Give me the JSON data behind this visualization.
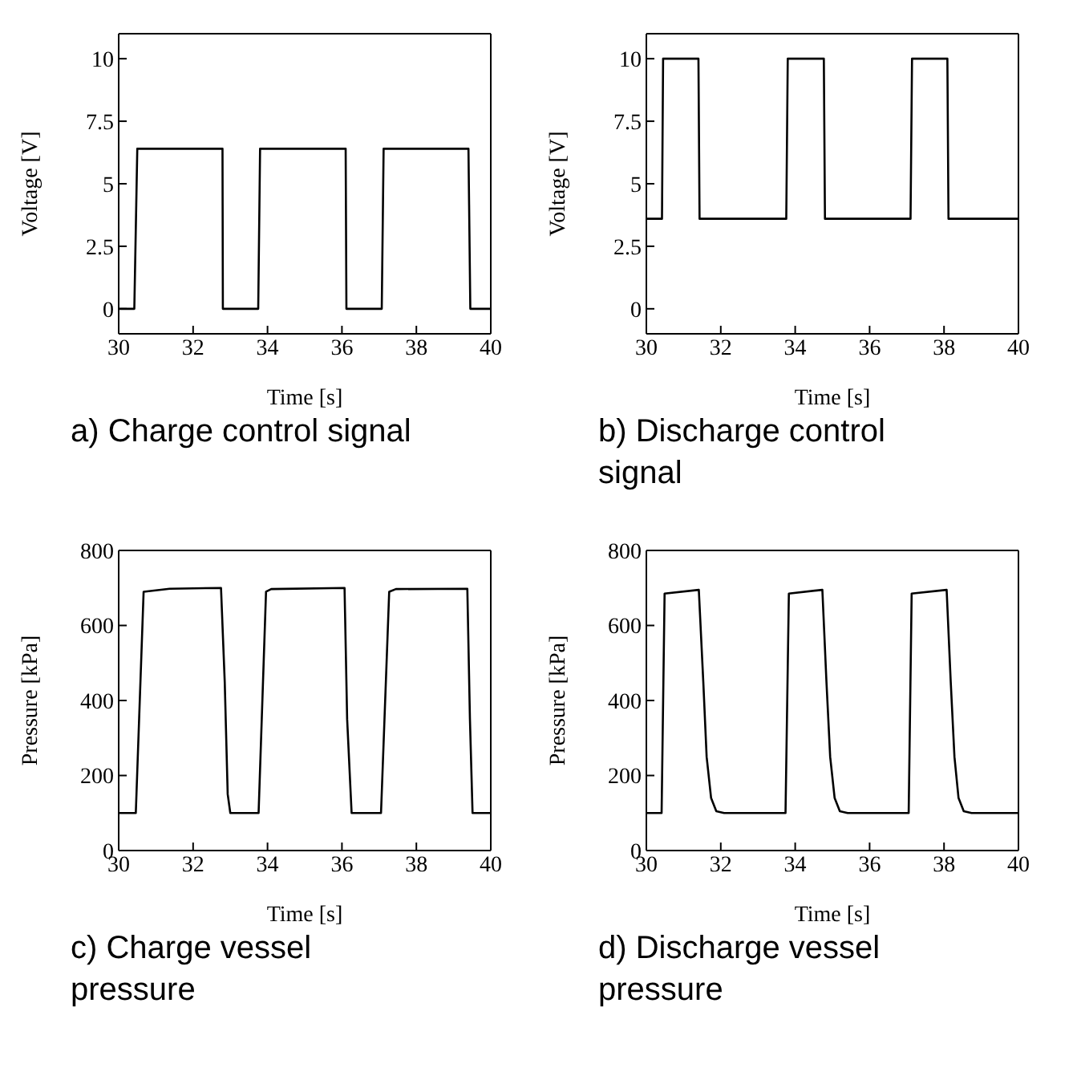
{
  "chart_data": [
    {
      "type": "line",
      "title": "a) Charge control signal",
      "xlabel": "Time [s]",
      "ylabel": "Voltage [V]",
      "xlim": [
        30,
        40
      ],
      "xticks": [
        30,
        32,
        34,
        36,
        38,
        40
      ],
      "ylim": [
        -1,
        11
      ],
      "yticks": [
        0,
        2.5,
        5,
        7.5,
        10
      ],
      "grid": false,
      "legend": false,
      "marker": "none",
      "line_style": "solid",
      "series": [
        {
          "color": "#000000",
          "x": [
            30,
            30.42,
            30.5,
            32.79,
            32.8,
            33.75,
            33.8,
            36.1,
            36.12,
            37.07,
            37.12,
            39.4,
            39.45,
            40
          ],
          "values": [
            0,
            0,
            6.4,
            6.4,
            0,
            0,
            6.4,
            6.4,
            0,
            0,
            6.4,
            6.4,
            0,
            0
          ]
        }
      ]
    },
    {
      "type": "line",
      "title": "b) Discharge control signal",
      "xlabel": "Time [s]",
      "ylabel": "Voltage [V]",
      "xlim": [
        30,
        40
      ],
      "xticks": [
        30,
        32,
        34,
        36,
        38,
        40
      ],
      "ylim": [
        -1,
        11
      ],
      "yticks": [
        0,
        2.5,
        5,
        7.5,
        10
      ],
      "grid": false,
      "legend": false,
      "marker": "none",
      "line_style": "solid",
      "series": [
        {
          "color": "#000000",
          "x": [
            30,
            30.42,
            30.45,
            31.4,
            31.43,
            33.76,
            33.8,
            34.77,
            34.8,
            37.1,
            37.14,
            38.09,
            38.12,
            40
          ],
          "values": [
            3.6,
            3.6,
            10,
            10,
            3.6,
            3.6,
            10,
            10,
            3.6,
            3.6,
            10,
            10,
            3.6,
            3.6
          ]
        }
      ]
    },
    {
      "type": "line",
      "title": "c) Charge vessel pressure",
      "xlabel": "Time [s]",
      "ylabel": "Pressure [kPa]",
      "xlim": [
        30,
        40
      ],
      "xticks": [
        30,
        32,
        34,
        36,
        38,
        40
      ],
      "ylim": [
        0,
        800
      ],
      "yticks": [
        0,
        200,
        400,
        600,
        800
      ],
      "grid": false,
      "legend": false,
      "marker": "none",
      "line_style": "solid",
      "series": [
        {
          "color": "#000000",
          "x": [
            30,
            30.46,
            30.67,
            31.37,
            32.75,
            32.85,
            32.93,
            33,
            33.76,
            33.96,
            34.1,
            36.07,
            36.14,
            36.26,
            37.05,
            37.27,
            37.45,
            39.37,
            39.44,
            39.51,
            40
          ],
          "values": [
            100,
            100,
            690,
            698,
            700,
            450,
            150,
            100,
            100,
            690,
            697,
            700,
            350,
            100,
            100,
            690,
            697,
            698,
            350,
            100,
            100
          ]
        }
      ]
    },
    {
      "type": "line",
      "title": "d) Discharge vessel pressure",
      "xlabel": "Time [s]",
      "ylabel": "Pressure [kPa]",
      "xlim": [
        30,
        40
      ],
      "xticks": [
        30,
        32,
        34,
        36,
        38,
        40
      ],
      "ylim": [
        0,
        800
      ],
      "yticks": [
        0,
        200,
        400,
        600,
        800
      ],
      "grid": false,
      "legend": false,
      "marker": "none",
      "line_style": "solid",
      "series": [
        {
          "color": "#000000",
          "x": [
            30,
            30.41,
            30.49,
            31.41,
            31.53,
            31.62,
            31.74,
            31.88,
            32.09,
            33.74,
            33.83,
            34.73,
            34.84,
            34.94,
            35.06,
            35.2,
            35.41,
            37.05,
            37.13,
            38.07,
            38.18,
            38.28,
            38.39,
            38.53,
            38.74,
            40
          ],
          "values": [
            100,
            100,
            685,
            695,
            450,
            250,
            140,
            105,
            100,
            100,
            685,
            695,
            450,
            250,
            140,
            105,
            100,
            100,
            685,
            695,
            450,
            250,
            140,
            105,
            100,
            100
          ]
        }
      ]
    }
  ]
}
